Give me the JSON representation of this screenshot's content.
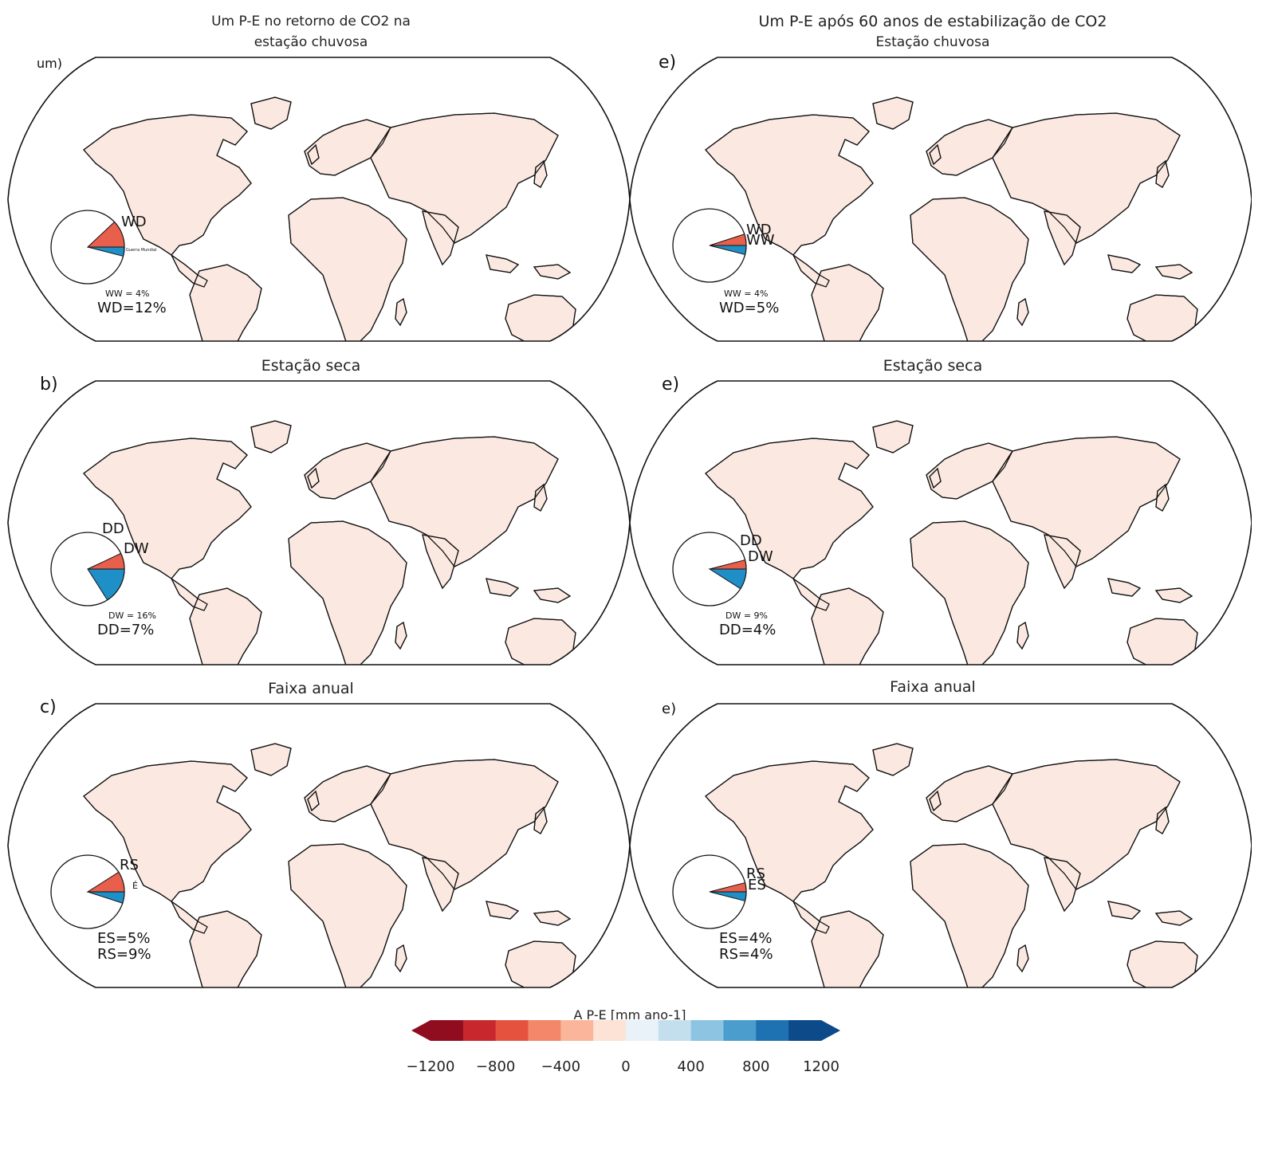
{
  "panels": [
    {
      "id": "a",
      "title_line1": "Um P-E no retorno de CO2 na",
      "title_line2": "estação chuvosa",
      "label": "um)",
      "pie": {
        "top_label": "WD",
        "bottom_label": "Guerra Mundial",
        "top_color": "#e8604c",
        "bottom_color": "#1f8fc7"
      },
      "stat_small": "WW = 4%",
      "stat_big": "WD=12%"
    },
    {
      "id": "d",
      "title_line1": "Um P-E após 60 anos de estabilização de CO2",
      "title_line2": "Estação chuvosa",
      "label": "e)",
      "pie": {
        "top_label": "WD",
        "bottom_label": "WW",
        "top_color": "#e8604c",
        "bottom_color": "#1f8fc7"
      },
      "stat_small": "WW = 4%",
      "stat_big": "WD=5%"
    },
    {
      "id": "b",
      "title_line1": "Estação seca",
      "label": "b)",
      "pie": {
        "top_label": "DD",
        "bottom_label": "DW",
        "top_color": "#e8604c",
        "bottom_color": "#1f8fc7"
      },
      "stat_small": "DW = 16%",
      "stat_big": "DD=7%"
    },
    {
      "id": "e",
      "title_line1": "Estação seca",
      "label": "e)",
      "pie": {
        "top_label": "DD",
        "bottom_label": "DW",
        "top_color": "#e8604c",
        "bottom_color": "#1f8fc7"
      },
      "stat_small": "DW = 9%",
      "stat_big": "DD=4%"
    },
    {
      "id": "c",
      "title_line1": "Faixa anual",
      "label": "c)",
      "pie": {
        "top_label": "RS",
        "bottom_label": "É",
        "top_color": "#e8604c",
        "bottom_color": "#1f8fc7"
      },
      "stat_line1": "ES=5%",
      "stat_line2": "RS=9%"
    },
    {
      "id": "f",
      "title_line1": "Faixa anual",
      "label": "e)",
      "pie": {
        "top_label": "RS",
        "bottom_label": "ES",
        "top_color": "#e8604c",
        "bottom_color": "#1f8fc7"
      },
      "stat_line1": "ES=4%",
      "stat_line2": "RS=4%"
    }
  ],
  "colorbar": {
    "title": "A P-E [mm ano-1]",
    "ticks": [
      "−1200",
      "−800",
      "−400",
      "0",
      "400",
      "800",
      "1200"
    ],
    "colors": [
      "#8f0d1e",
      "#c8272d",
      "#e5533f",
      "#f4876a",
      "#fab59a",
      "#fde2d6",
      "#e8f2f8",
      "#c3dfee",
      "#8cc4e2",
      "#4a9dcc",
      "#1f72b1",
      "#0d4a8a"
    ]
  },
  "pie_fractions": {
    "a": {
      "top": 0.12,
      "bottom": 0.04
    },
    "d": {
      "top": 0.05,
      "bottom": 0.04
    },
    "b": {
      "top": 0.07,
      "bottom": 0.16
    },
    "e": {
      "top": 0.04,
      "bottom": 0.09
    },
    "c": {
      "top": 0.09,
      "bottom": 0.05
    },
    "f": {
      "top": 0.04,
      "bottom": 0.04
    }
  }
}
